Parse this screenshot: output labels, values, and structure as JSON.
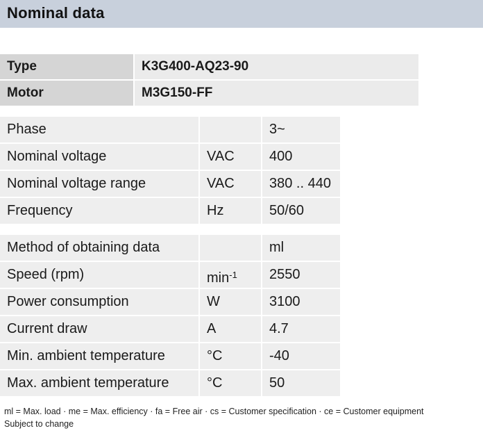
{
  "header": {
    "title": "Nominal data"
  },
  "identification": [
    {
      "label": "Type",
      "value": "K3G400-AQ23-90"
    },
    {
      "label": "Motor",
      "value": "M3G150-FF"
    }
  ],
  "electrical": [
    {
      "name": "Phase",
      "unit": "",
      "value": "3~"
    },
    {
      "name": "Nominal voltage",
      "unit": "VAC",
      "value": "400"
    },
    {
      "name": "Nominal voltage range",
      "unit": "VAC",
      "value": "380 .. 440"
    },
    {
      "name": "Frequency",
      "unit": "Hz",
      "value": "50/60"
    }
  ],
  "operating": [
    {
      "name": "Method of obtaining data",
      "unit": "",
      "value": "ml"
    },
    {
      "name": "Speed (rpm)",
      "unit_base": "min",
      "unit_sup": "-1",
      "value": "2550"
    },
    {
      "name": "Power consumption",
      "unit": "W",
      "value": "3100"
    },
    {
      "name": "Current draw",
      "unit": "A",
      "value": "4.7"
    },
    {
      "name": "Min. ambient temperature",
      "unit": "°C",
      "value": "-40"
    },
    {
      "name": "Max. ambient temperature",
      "unit": "°C",
      "value": "50"
    }
  ],
  "footnote": {
    "line1": "ml = Max. load · me = Max. efficiency · fa = Free air · cs = Customer specification · ce = Customer equipment",
    "line2": "Subject to change"
  }
}
